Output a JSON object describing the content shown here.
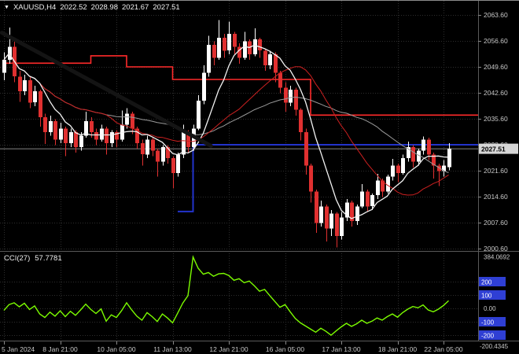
{
  "header": {
    "marker": "▼",
    "symbol_period": "XAUUSD,H4",
    "open": "2022.52",
    "high": "2028.98",
    "low": "2021.67",
    "close": "2027.51"
  },
  "indicator_header": {
    "label": "CCI(27)",
    "value": "57.7781"
  },
  "colors": {
    "background": "#000000",
    "grid": "#2e2e2e",
    "bull": "#ffffff",
    "bear": "#e03030",
    "ma_fast": "#f2f2f2",
    "ma_mid": "#9a9a9a",
    "ma_slow_red": "#cc2020",
    "step_red": "#ff2a2a",
    "step_blue": "#2233cc",
    "trendline": "#141414",
    "cci_line": "#7cfc00",
    "axis_text": "#c8c8c8",
    "axis_tick": "#8a8a8a",
    "level_box": "#2f3fd4",
    "price_tag_bg": "#d6d6d6",
    "price_tag_text": "#000000",
    "bid_line": "#b0b0b0",
    "separator": "#5a5a5a"
  },
  "chart_data": {
    "type": "candlestick",
    "title": "XAUUSD,H4",
    "symbol": "XAUUSD",
    "timeframe": "H4",
    "current_bar": {
      "open": 2022.52,
      "high": 2028.98,
      "low": 2021.67,
      "close": 2027.51
    },
    "price_axis": {
      "tick_labels": [
        "2063.60",
        "2056.60",
        "2049.60",
        "2042.60",
        "2035.60",
        "2028.60",
        "2021.60",
        "2014.60",
        "2007.60",
        "2000.60"
      ],
      "current_price": "2027.51",
      "range": [
        2000.6,
        2063.6
      ]
    },
    "time_axis": {
      "labels": [
        {
          "text": "5 Jan 2024",
          "i": 0
        },
        {
          "text": "8 Jan 21:00",
          "i": 11
        },
        {
          "text": "10 Jan 05:00",
          "i": 22
        },
        {
          "text": "11 Jan 13:00",
          "i": 33
        },
        {
          "text": "12 Jan 21:00",
          "i": 44
        },
        {
          "text": "16 Jan 05:00",
          "i": 55
        },
        {
          "text": "17 Jan 13:00",
          "i": 66
        },
        {
          "text": "18 Jan 21:00",
          "i": 77
        },
        {
          "text": "22 Jan 05:00",
          "i": 86
        }
      ]
    },
    "candles": [
      [
        2048,
        2053.5,
        2046,
        2051.5
      ],
      [
        2051.5,
        2060.2,
        2050.5,
        2055
      ],
      [
        2055,
        2056.5,
        2045.5,
        2047
      ],
      [
        2047,
        2048.5,
        2040.2,
        2043
      ],
      [
        2043,
        2047.5,
        2042,
        2046
      ],
      [
        2046,
        2046.8,
        2038.5,
        2040
      ],
      [
        2040,
        2044.5,
        2039,
        2043
      ],
      [
        2043,
        2043.5,
        2033.5,
        2036
      ],
      [
        2036,
        2037,
        2028.8,
        2032
      ],
      [
        2032,
        2036.5,
        2031,
        2035
      ],
      [
        2035,
        2035.5,
        2028.5,
        2030
      ],
      [
        2030,
        2034.5,
        2029,
        2033
      ],
      [
        2033,
        2033.5,
        2025.5,
        2029
      ],
      [
        2029,
        2033,
        2028,
        2032
      ],
      [
        2032,
        2032.5,
        2026.5,
        2028
      ],
      [
        2028,
        2032,
        2027,
        2031
      ],
      [
        2031,
        2037.5,
        2030.5,
        2035
      ],
      [
        2035,
        2036,
        2030.5,
        2032
      ],
      [
        2032,
        2033,
        2028.5,
        2030
      ],
      [
        2030,
        2034,
        2029.5,
        2033
      ],
      [
        2033,
        2033.5,
        2026,
        2029
      ],
      [
        2029,
        2032.5,
        2028,
        2032
      ],
      [
        2032,
        2032.5,
        2028,
        2030
      ],
      [
        2030,
        2037.8,
        2029.5,
        2034
      ],
      [
        2034,
        2038.5,
        2033,
        2037
      ],
      [
        2037,
        2037.5,
        2031.5,
        2033
      ],
      [
        2033,
        2033.5,
        2027.5,
        2029
      ],
      [
        2029,
        2030,
        2023,
        2026
      ],
      [
        2026,
        2031,
        2025,
        2030
      ],
      [
        2030,
        2030.5,
        2025.5,
        2027
      ],
      [
        2027,
        2027.5,
        2020,
        2024
      ],
      [
        2024,
        2028.5,
        2023,
        2028
      ],
      [
        2028,
        2028.5,
        2023.5,
        2025
      ],
      [
        2025,
        2025.5,
        2016.8,
        2021
      ],
      [
        2021,
        2026.5,
        2020,
        2026
      ],
      [
        2026,
        2034,
        2025,
        2032
      ],
      [
        2032,
        2032.5,
        2026.5,
        2028
      ],
      [
        2028,
        2034,
        2027,
        2033
      ],
      [
        2033,
        2042,
        2032.5,
        2040.5
      ],
      [
        2040.5,
        2050,
        2039.5,
        2048
      ],
      [
        2048,
        2058,
        2047,
        2055.5
      ],
      [
        2055.5,
        2056.5,
        2050,
        2052
      ],
      [
        2052,
        2062.2,
        2051.5,
        2057.5
      ],
      [
        2057.5,
        2058.5,
        2052,
        2054
      ],
      [
        2054,
        2061.8,
        2053,
        2058.5
      ],
      [
        2058.5,
        2059,
        2053,
        2055
      ],
      [
        2055,
        2056,
        2050.5,
        2052
      ],
      [
        2052,
        2059,
        2051.5,
        2056.5
      ],
      [
        2056.5,
        2057,
        2051.5,
        2053
      ],
      [
        2053,
        2060,
        2052.5,
        2057
      ],
      [
        2057,
        2057.5,
        2052,
        2054
      ],
      [
        2054,
        2054.5,
        2048.5,
        2050
      ],
      [
        2050,
        2054,
        2049,
        2053
      ],
      [
        2053,
        2053.5,
        2045.5,
        2048
      ],
      [
        2048,
        2048.5,
        2042.5,
        2044
      ],
      [
        2044,
        2045.5,
        2037.5,
        2040
      ],
      [
        2040,
        2044.5,
        2039,
        2043.5
      ],
      [
        2043.5,
        2044,
        2036.5,
        2038
      ],
      [
        2038,
        2038.5,
        2029.8,
        2032
      ],
      [
        2032,
        2033,
        2020.5,
        2023
      ],
      [
        2023,
        2023.5,
        2013,
        2016
      ],
      [
        2016,
        2016.5,
        2004.8,
        2007.5
      ],
      [
        2007.5,
        2013.5,
        2006.5,
        2012
      ],
      [
        2012,
        2012.5,
        2002.5,
        2006
      ],
      [
        2006,
        2011,
        2004,
        2010
      ],
      [
        2010,
        2010.5,
        2000.9,
        2004
      ],
      [
        2004,
        2010.5,
        2003,
        2009
      ],
      [
        2009,
        2014,
        2008,
        2013
      ],
      [
        2013,
        2013.5,
        2006.5,
        2008
      ],
      [
        2008,
        2012.5,
        2007,
        2012
      ],
      [
        2012,
        2018,
        2011.5,
        2016
      ],
      [
        2016,
        2016.5,
        2010.5,
        2012
      ],
      [
        2012,
        2015.5,
        2011,
        2015
      ],
      [
        2015,
        2020.8,
        2014,
        2019
      ],
      [
        2019,
        2019.5,
        2014.5,
        2016
      ],
      [
        2016,
        2020.5,
        2015.5,
        2020
      ],
      [
        2020,
        2024.8,
        2019,
        2023
      ],
      [
        2023,
        2023.5,
        2018.5,
        2021
      ],
      [
        2021,
        2026,
        2020.5,
        2025
      ],
      [
        2025,
        2029.5,
        2024,
        2028
      ],
      [
        2028,
        2028.5,
        2022.5,
        2024
      ],
      [
        2024,
        2027.5,
        2023,
        2027
      ],
      [
        2027,
        2030.8,
        2026,
        2030
      ],
      [
        2030,
        2030.5,
        2024.5,
        2026
      ],
      [
        2026,
        2026.5,
        2019.5,
        2023
      ],
      [
        2023,
        2023.5,
        2017.5,
        2021.5
      ],
      [
        2021.5,
        2024.5,
        2020,
        2023
      ],
      [
        2022.52,
        2028.98,
        2021.67,
        2027.51
      ]
    ],
    "overlays": {
      "moving_averages": [
        {
          "period": 34,
          "color_key": "ma_mid",
          "width": 1
        },
        {
          "period": 21,
          "color_key": "ma_slow_red",
          "width": 1
        },
        {
          "period": 8,
          "color_key": "ma_fast",
          "width": 1.3
        }
      ],
      "red_step_segments": [
        [
          0,
          17,
          2050.6
        ],
        [
          17,
          24,
          2052.6
        ],
        [
          24,
          33,
          2049.6
        ],
        [
          33,
          60,
          2046.2
        ],
        [
          60,
          88,
          2036.6
        ]
      ],
      "blue_step_segments": [
        [
          34,
          37,
          2010.6
        ],
        [
          37,
          88,
          2028.6
        ]
      ],
      "trendline": {
        "i1": -0.4,
        "p1": 2058.8,
        "i2": 40.5,
        "p2": 2028.3
      },
      "bid_line_price": 2027.51
    },
    "indicator": {
      "name": "CCI",
      "period": 27,
      "current_value": 57.7781,
      "scale_max": "384.0692",
      "scale_min": "-200.4345",
      "levels": [
        "200",
        "100",
        "0.00",
        "-100",
        "-200"
      ],
      "values": [
        -15,
        28,
        42,
        12,
        38,
        -8,
        18,
        -42,
        -68,
        -28,
        -58,
        -18,
        -62,
        -22,
        -52,
        -12,
        32,
        -8,
        -38,
        -4,
        -96,
        -48,
        -68,
        -18,
        42,
        -12,
        -58,
        -88,
        -32,
        -62,
        -98,
        -42,
        -72,
        -108,
        -35,
        40,
        95,
        384.07,
        300,
        255,
        268,
        240,
        258,
        262,
        246,
        210,
        222,
        192,
        204,
        168,
        128,
        142,
        96,
        52,
        8,
        28,
        -25,
        -75,
        -108,
        -132,
        -155,
        -178,
        -148,
        -172,
        -200.43,
        -168,
        -138,
        -112,
        -135,
        -115,
        -88,
        -112,
        -96,
        -72,
        -88,
        -62,
        -42,
        -66,
        -32,
        -6,
        14,
        4,
        26,
        -12,
        -26,
        -6,
        22,
        57.78
      ]
    }
  }
}
